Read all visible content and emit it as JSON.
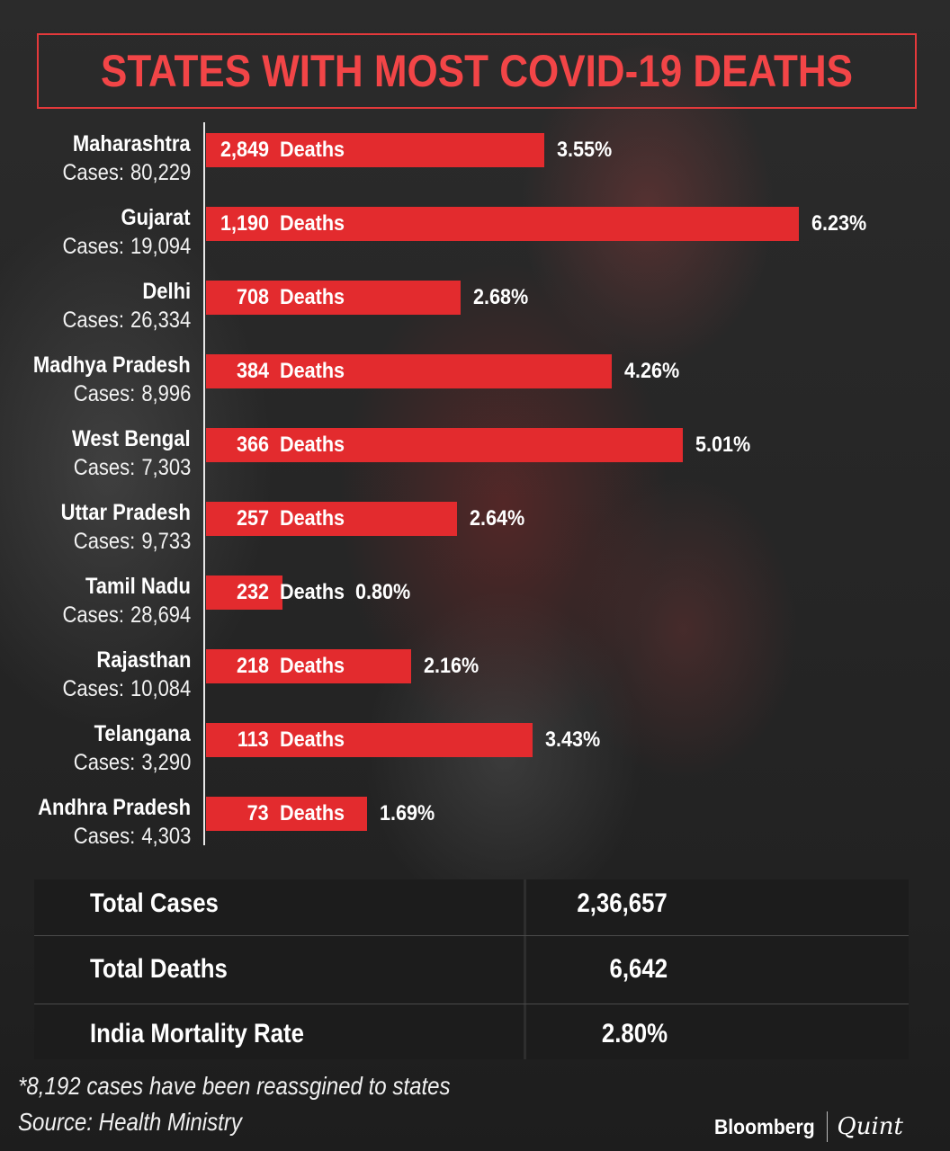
{
  "title": "STATES WITH MOST COVID-19 DEATHS",
  "deaths_suffix": "Deaths",
  "cases_prefix": "Cases:",
  "colors": {
    "accent": "#e32b2e",
    "title": "#f24547",
    "background": "#262626",
    "table_bg": "#1c1c1c"
  },
  "chart_data": {
    "type": "bar",
    "orientation": "horizontal",
    "title": "STATES WITH MOST COVID-19 DEATHS",
    "bar_length_encodes": "mortality_rate",
    "rows": [
      {
        "state": "Maharashtra",
        "cases": "80,229",
        "deaths": "2,849",
        "rate": "3.55%",
        "rate_value": 3.55
      },
      {
        "state": "Gujarat",
        "cases": "19,094",
        "deaths": "1,190",
        "rate": "6.23%",
        "rate_value": 6.23
      },
      {
        "state": "Delhi",
        "cases": "26,334",
        "deaths": "708",
        "rate": "2.68%",
        "rate_value": 2.68
      },
      {
        "state": "Madhya Pradesh",
        "cases": "8,996",
        "deaths": "384",
        "rate": "4.26%",
        "rate_value": 4.26
      },
      {
        "state": "West Bengal",
        "cases": "7,303",
        "deaths": "366",
        "rate": "5.01%",
        "rate_value": 5.01
      },
      {
        "state": "Uttar Pradesh",
        "cases": "9,733",
        "deaths": "257",
        "rate": "2.64%",
        "rate_value": 2.64
      },
      {
        "state": "Tamil Nadu",
        "cases": "28,694",
        "deaths": "232",
        "rate": "0.80%",
        "rate_value": 0.8
      },
      {
        "state": "Rajasthan",
        "cases": "10,084",
        "deaths": "218",
        "rate": "2.16%",
        "rate_value": 2.16
      },
      {
        "state": "Telangana",
        "cases": "3,290",
        "deaths": "113",
        "rate": "3.43%",
        "rate_value": 3.43
      },
      {
        "state": "Andhra Pradesh",
        "cases": "4,303",
        "deaths": "73",
        "rate": "1.69%",
        "rate_value": 1.69
      }
    ]
  },
  "totals": {
    "cases_label": "Total Cases",
    "cases_value": "2,36,657",
    "deaths_label": "Total Deaths",
    "deaths_value": "6,642",
    "rate_label": "India Mortality Rate",
    "rate_value": "2.80%"
  },
  "footnote": "*8,192 cases have been reassgined to states",
  "source": "Source: Health Ministry",
  "logo": {
    "brand": "Bloomberg",
    "partner": "Quint"
  }
}
